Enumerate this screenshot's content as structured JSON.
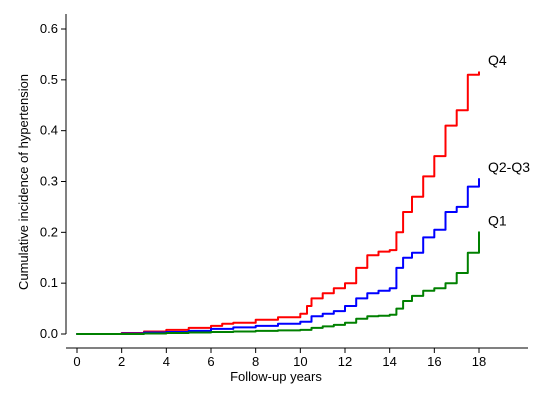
{
  "chart_data": {
    "type": "line",
    "title": "",
    "xlabel": "Follow-up years",
    "ylabel": "Cumulative incidence of hypertension",
    "xlim": [
      0,
      18
    ],
    "ylim": [
      0,
      0.6
    ],
    "xticks": [
      0,
      2,
      4,
      6,
      8,
      10,
      12,
      14,
      16,
      18
    ],
    "yticks": [
      "0.0",
      "0.1",
      "0.2",
      "0.3",
      "0.4",
      "0.5",
      "0.6"
    ],
    "grid": false,
    "legend": "none; series labeled at right end of lines",
    "series": [
      {
        "name": "Q4",
        "color": "#ff0000",
        "x": [
          0,
          2,
          3,
          4,
          5,
          6,
          6.5,
          7,
          8,
          9,
          10,
          10.3,
          10.5,
          11,
          11.5,
          12,
          12.5,
          13,
          13.5,
          14,
          14.3,
          14.6,
          15,
          15.5,
          16,
          16.5,
          17,
          17.5,
          18
        ],
        "y": [
          0.0,
          0.002,
          0.005,
          0.008,
          0.012,
          0.016,
          0.02,
          0.022,
          0.028,
          0.033,
          0.04,
          0.055,
          0.07,
          0.08,
          0.09,
          0.1,
          0.13,
          0.155,
          0.162,
          0.165,
          0.2,
          0.24,
          0.27,
          0.31,
          0.35,
          0.41,
          0.44,
          0.51,
          0.515
        ]
      },
      {
        "name": "Q2-Q3",
        "color": "#0000ff",
        "x": [
          0,
          2,
          3,
          4,
          5,
          6,
          7,
          8,
          9,
          10,
          10.5,
          11,
          11.5,
          12,
          12.5,
          13,
          13.5,
          14,
          14.3,
          14.6,
          15,
          15.5,
          16,
          16.5,
          17,
          17.5,
          18
        ],
        "y": [
          0.0,
          0.001,
          0.003,
          0.004,
          0.006,
          0.01,
          0.013,
          0.016,
          0.02,
          0.024,
          0.035,
          0.04,
          0.045,
          0.055,
          0.07,
          0.08,
          0.085,
          0.09,
          0.13,
          0.15,
          0.16,
          0.19,
          0.205,
          0.24,
          0.25,
          0.29,
          0.305
        ]
      },
      {
        "name": "Q1",
        "color": "#008000",
        "x": [
          0,
          2,
          3,
          4,
          5,
          6,
          7,
          8,
          9,
          10,
          10.5,
          11,
          11.5,
          12,
          12.5,
          13,
          13.5,
          14,
          14.3,
          14.6,
          15,
          15.5,
          16,
          16.5,
          17,
          17.5,
          18
        ],
        "y": [
          0.0,
          0.0,
          0.001,
          0.002,
          0.003,
          0.004,
          0.005,
          0.006,
          0.007,
          0.008,
          0.012,
          0.015,
          0.018,
          0.022,
          0.03,
          0.035,
          0.036,
          0.038,
          0.05,
          0.065,
          0.075,
          0.085,
          0.09,
          0.1,
          0.12,
          0.16,
          0.2
        ]
      }
    ]
  }
}
